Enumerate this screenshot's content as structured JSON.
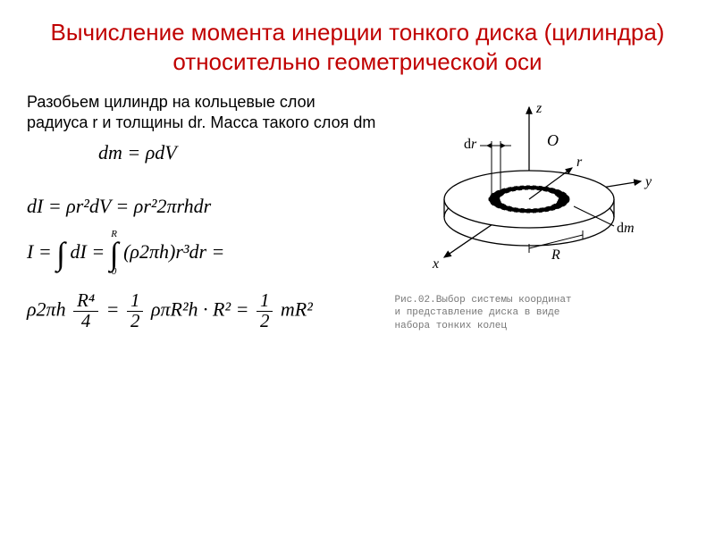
{
  "title": "Вычисление момента инерции тонкого диска (цилиндра) относительно геометрической оси",
  "paragraph": {
    "line1": "Разобьем цилиндр на кольцевые слои",
    "line2": "радиуса r и толщины dr. Масса такого слоя dm"
  },
  "formulas": {
    "f1": "dm = ρdV",
    "f2": "dI = ρr²dV = ρr²2πrhdr",
    "f3_lhs": "I =",
    "f3_int1_upper": "",
    "f3_int1_lower": "",
    "f3_mid1": "dI =",
    "f3_int2_upper": "R",
    "f3_int2_lower": "0",
    "f3_integrand": "(ρ2πh)r³dr =",
    "f4_pre": "ρ2πh",
    "f4_frac1_num": "R⁴",
    "f4_frac1_den": "4",
    "f4_eq1": " = ",
    "f4_frac2_num": "1",
    "f4_frac2_den": "2",
    "f4_mid": " ρπR²h · R² = ",
    "f4_frac3_num": "1",
    "f4_frac3_den": "2",
    "f4_end": " mR²"
  },
  "diagram": {
    "labels": {
      "z": "z",
      "y": "y",
      "x": "x",
      "O": "O",
      "r": "r",
      "R": "R",
      "dr": "dr",
      "dm": "dm"
    },
    "caption": "Рис.02.Выбор системы координат\nи представление диска в виде\nнабора тонких колец",
    "colors": {
      "stroke": "#000000",
      "fill_ring": "#000000",
      "bg": "#ffffff"
    }
  }
}
